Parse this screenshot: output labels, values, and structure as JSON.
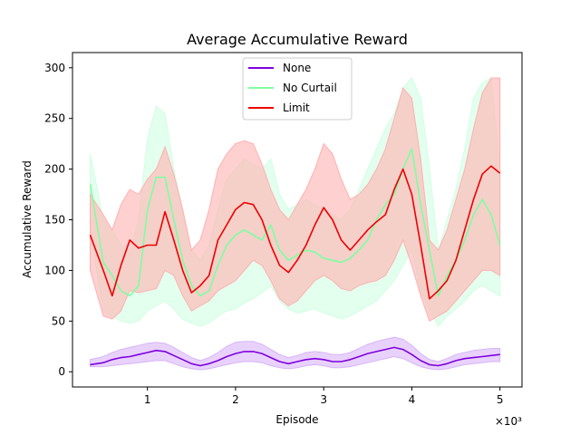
{
  "chart_data": {
    "type": "line",
    "title": "Average Accumulative Reward",
    "xlabel": "Episode",
    "ylabel": "Accumulative Reward",
    "x_multiplier_label": "×10³",
    "xlim": [
      0.15,
      5.25
    ],
    "ylim": [
      -15,
      315
    ],
    "xticks": [
      1,
      2,
      3,
      4,
      5
    ],
    "xtick_labels": [
      "1",
      "2",
      "3",
      "4",
      "5"
    ],
    "yticks": [
      0,
      50,
      100,
      150,
      200,
      250,
      300
    ],
    "ytick_labels": [
      "0",
      "50",
      "100",
      "150",
      "200",
      "250",
      "300"
    ],
    "grid": false,
    "legend_position": "upper-center",
    "x": [
      0.35,
      0.5,
      0.6,
      0.7,
      0.8,
      0.9,
      1.0,
      1.1,
      1.2,
      1.3,
      1.4,
      1.5,
      1.6,
      1.7,
      1.8,
      1.9,
      2.0,
      2.1,
      2.2,
      2.3,
      2.4,
      2.5,
      2.6,
      2.7,
      2.8,
      2.9,
      3.0,
      3.1,
      3.2,
      3.3,
      3.4,
      3.5,
      3.6,
      3.7,
      3.8,
      3.9,
      4.0,
      4.1,
      4.2,
      4.3,
      4.4,
      4.5,
      4.6,
      4.7,
      4.8,
      4.9,
      5.0
    ],
    "series": [
      {
        "name": "None",
        "color": "#7F00E0",
        "band_color": "#D8B4F8",
        "values": [
          7,
          9,
          12,
          14,
          15,
          17,
          19,
          21,
          20,
          16,
          12,
          8,
          6,
          8,
          11,
          15,
          18,
          20,
          20,
          18,
          14,
          10,
          8,
          10,
          12,
          13,
          12,
          10,
          10,
          12,
          15,
          18,
          20,
          22,
          24,
          22,
          17,
          11,
          7,
          6,
          8,
          11,
          13,
          14,
          15,
          16,
          17
        ],
        "upper": [
          12,
          15,
          19,
          22,
          24,
          26,
          28,
          29,
          28,
          24,
          19,
          14,
          11,
          14,
          19,
          25,
          29,
          30,
          30,
          27,
          22,
          17,
          14,
          16,
          19,
          20,
          19,
          17,
          17,
          19,
          23,
          27,
          30,
          32,
          34,
          32,
          26,
          18,
          12,
          10,
          13,
          17,
          19,
          21,
          22,
          23,
          23
        ],
        "lower": [
          5,
          5,
          6,
          7,
          8,
          9,
          10,
          11,
          11,
          8,
          5,
          3,
          2,
          3,
          5,
          7,
          9,
          10,
          10,
          9,
          6,
          4,
          3,
          4,
          6,
          7,
          6,
          4,
          4,
          5,
          7,
          9,
          11,
          13,
          15,
          13,
          9,
          5,
          3,
          2,
          3,
          5,
          7,
          8,
          9,
          10,
          10
        ]
      },
      {
        "name": "No Curtail",
        "color": "#7DFFA0",
        "band_color": "#D0FFE2",
        "values": [
          185,
          108,
          95,
          80,
          75,
          85,
          160,
          192,
          192,
          150,
          110,
          85,
          75,
          80,
          105,
          125,
          135,
          140,
          135,
          130,
          145,
          120,
          110,
          115,
          120,
          118,
          112,
          110,
          108,
          112,
          120,
          130,
          150,
          165,
          175,
          200,
          220,
          165,
          120,
          75,
          95,
          110,
          130,
          155,
          170,
          155,
          125
        ],
        "upper": [
          215,
          150,
          140,
          125,
          115,
          150,
          230,
          262,
          255,
          200,
          160,
          120,
          110,
          125,
          160,
          190,
          200,
          210,
          205,
          200,
          210,
          175,
          160,
          165,
          170,
          165,
          160,
          155,
          150,
          160,
          180,
          200,
          220,
          240,
          255,
          280,
          290,
          270,
          200,
          120,
          150,
          180,
          220,
          270,
          285,
          290,
          200
        ],
        "lower": [
          140,
          60,
          55,
          50,
          48,
          50,
          60,
          65,
          70,
          62,
          52,
          48,
          45,
          48,
          55,
          60,
          62,
          68,
          72,
          78,
          85,
          70,
          62,
          58,
          60,
          62,
          58,
          55,
          52,
          55,
          60,
          65,
          70,
          80,
          90,
          105,
          120,
          80,
          60,
          45,
          55,
          62,
          70,
          80,
          85,
          80,
          75
        ]
      },
      {
        "name": "Limit",
        "color": "#EE0000",
        "band_color": "#FFB0B0",
        "values": [
          135,
          100,
          75,
          105,
          130,
          122,
          125,
          125,
          158,
          130,
          100,
          78,
          85,
          95,
          130,
          145,
          160,
          167,
          165,
          150,
          125,
          105,
          98,
          110,
          125,
          145,
          162,
          150,
          130,
          120,
          130,
          140,
          148,
          155,
          180,
          200,
          175,
          125,
          72,
          80,
          90,
          110,
          140,
          170,
          195,
          203,
          196
        ],
        "upper": [
          175,
          155,
          140,
          165,
          180,
          175,
          190,
          200,
          222,
          195,
          160,
          120,
          130,
          160,
          200,
          215,
          225,
          228,
          225,
          205,
          180,
          160,
          150,
          165,
          180,
          200,
          225,
          215,
          190,
          170,
          175,
          185,
          200,
          220,
          250,
          280,
          270,
          210,
          130,
          120,
          140,
          170,
          200,
          240,
          275,
          290,
          290
        ],
        "lower": [
          100,
          55,
          52,
          60,
          80,
          78,
          80,
          82,
          100,
          95,
          75,
          60,
          65,
          70,
          80,
          85,
          90,
          100,
          110,
          105,
          90,
          72,
          65,
          70,
          80,
          90,
          95,
          90,
          82,
          80,
          85,
          88,
          90,
          95,
          110,
          130,
          105,
          75,
          50,
          55,
          60,
          70,
          80,
          90,
          100,
          100,
          95
        ]
      }
    ]
  }
}
